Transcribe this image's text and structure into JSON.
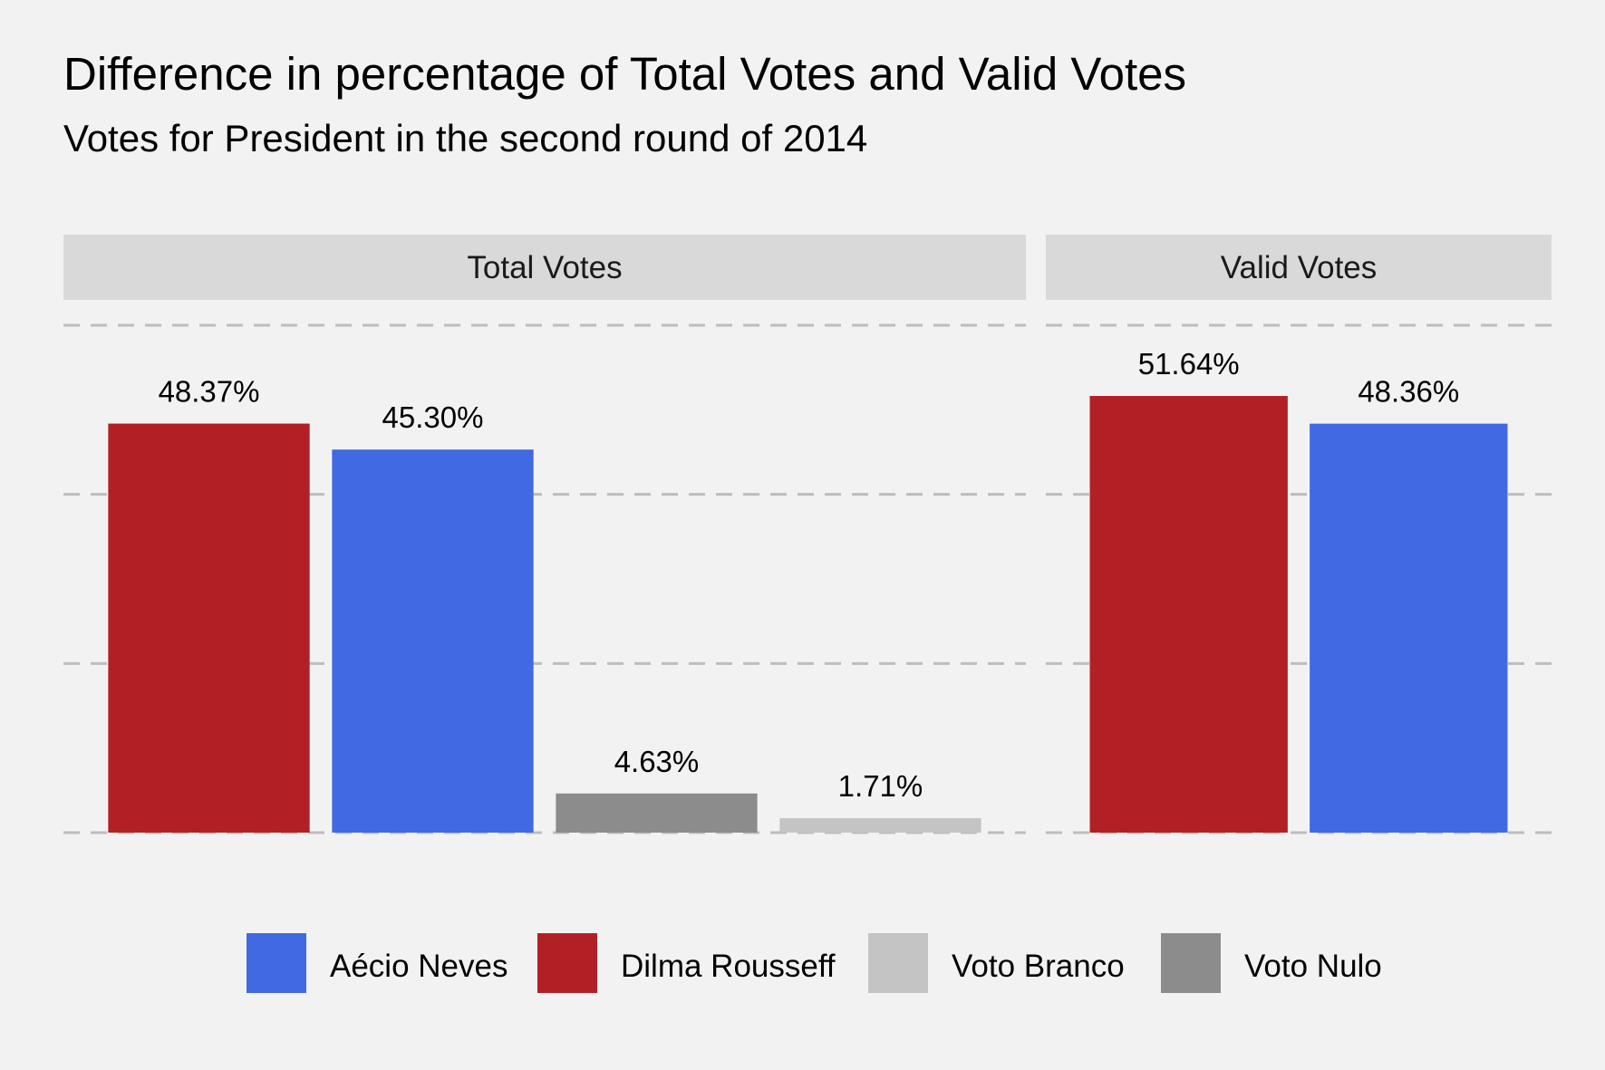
{
  "chart_data": {
    "type": "bar",
    "title": "Difference in percentage of Total Votes and Valid Votes",
    "subtitle": "Votes for President in the second round of 2014",
    "xlabel": "",
    "ylabel": "",
    "ylim": [
      0,
      60
    ],
    "grid": true,
    "gridlines": [
      0,
      20,
      40,
      60
    ],
    "legend_position": "bottom",
    "colors": {
      "Aécio Neves": "#4169e1",
      "Dilma Rousseff": "#b22025",
      "Voto Branco": "#c4c4c4",
      "Voto Nulo": "#8c8c8c"
    },
    "legend": [
      "Aécio Neves",
      "Dilma Rousseff",
      "Voto Branco",
      "Voto Nulo"
    ],
    "panels": [
      {
        "name": "Total Votes",
        "bars": [
          {
            "series": "Dilma Rousseff",
            "value": 48.37,
            "label": "48.37%"
          },
          {
            "series": "Aécio Neves",
            "value": 45.3,
            "label": "45.30%"
          },
          {
            "series": "Voto Nulo",
            "value": 4.63,
            "label": "4.63%"
          },
          {
            "series": "Voto Branco",
            "value": 1.71,
            "label": "1.71%"
          }
        ]
      },
      {
        "name": "Valid Votes",
        "bars": [
          {
            "series": "Dilma Rousseff",
            "value": 51.64,
            "label": "51.64%"
          },
          {
            "series": "Aécio Neves",
            "value": 48.36,
            "label": "48.36%"
          }
        ]
      }
    ]
  }
}
